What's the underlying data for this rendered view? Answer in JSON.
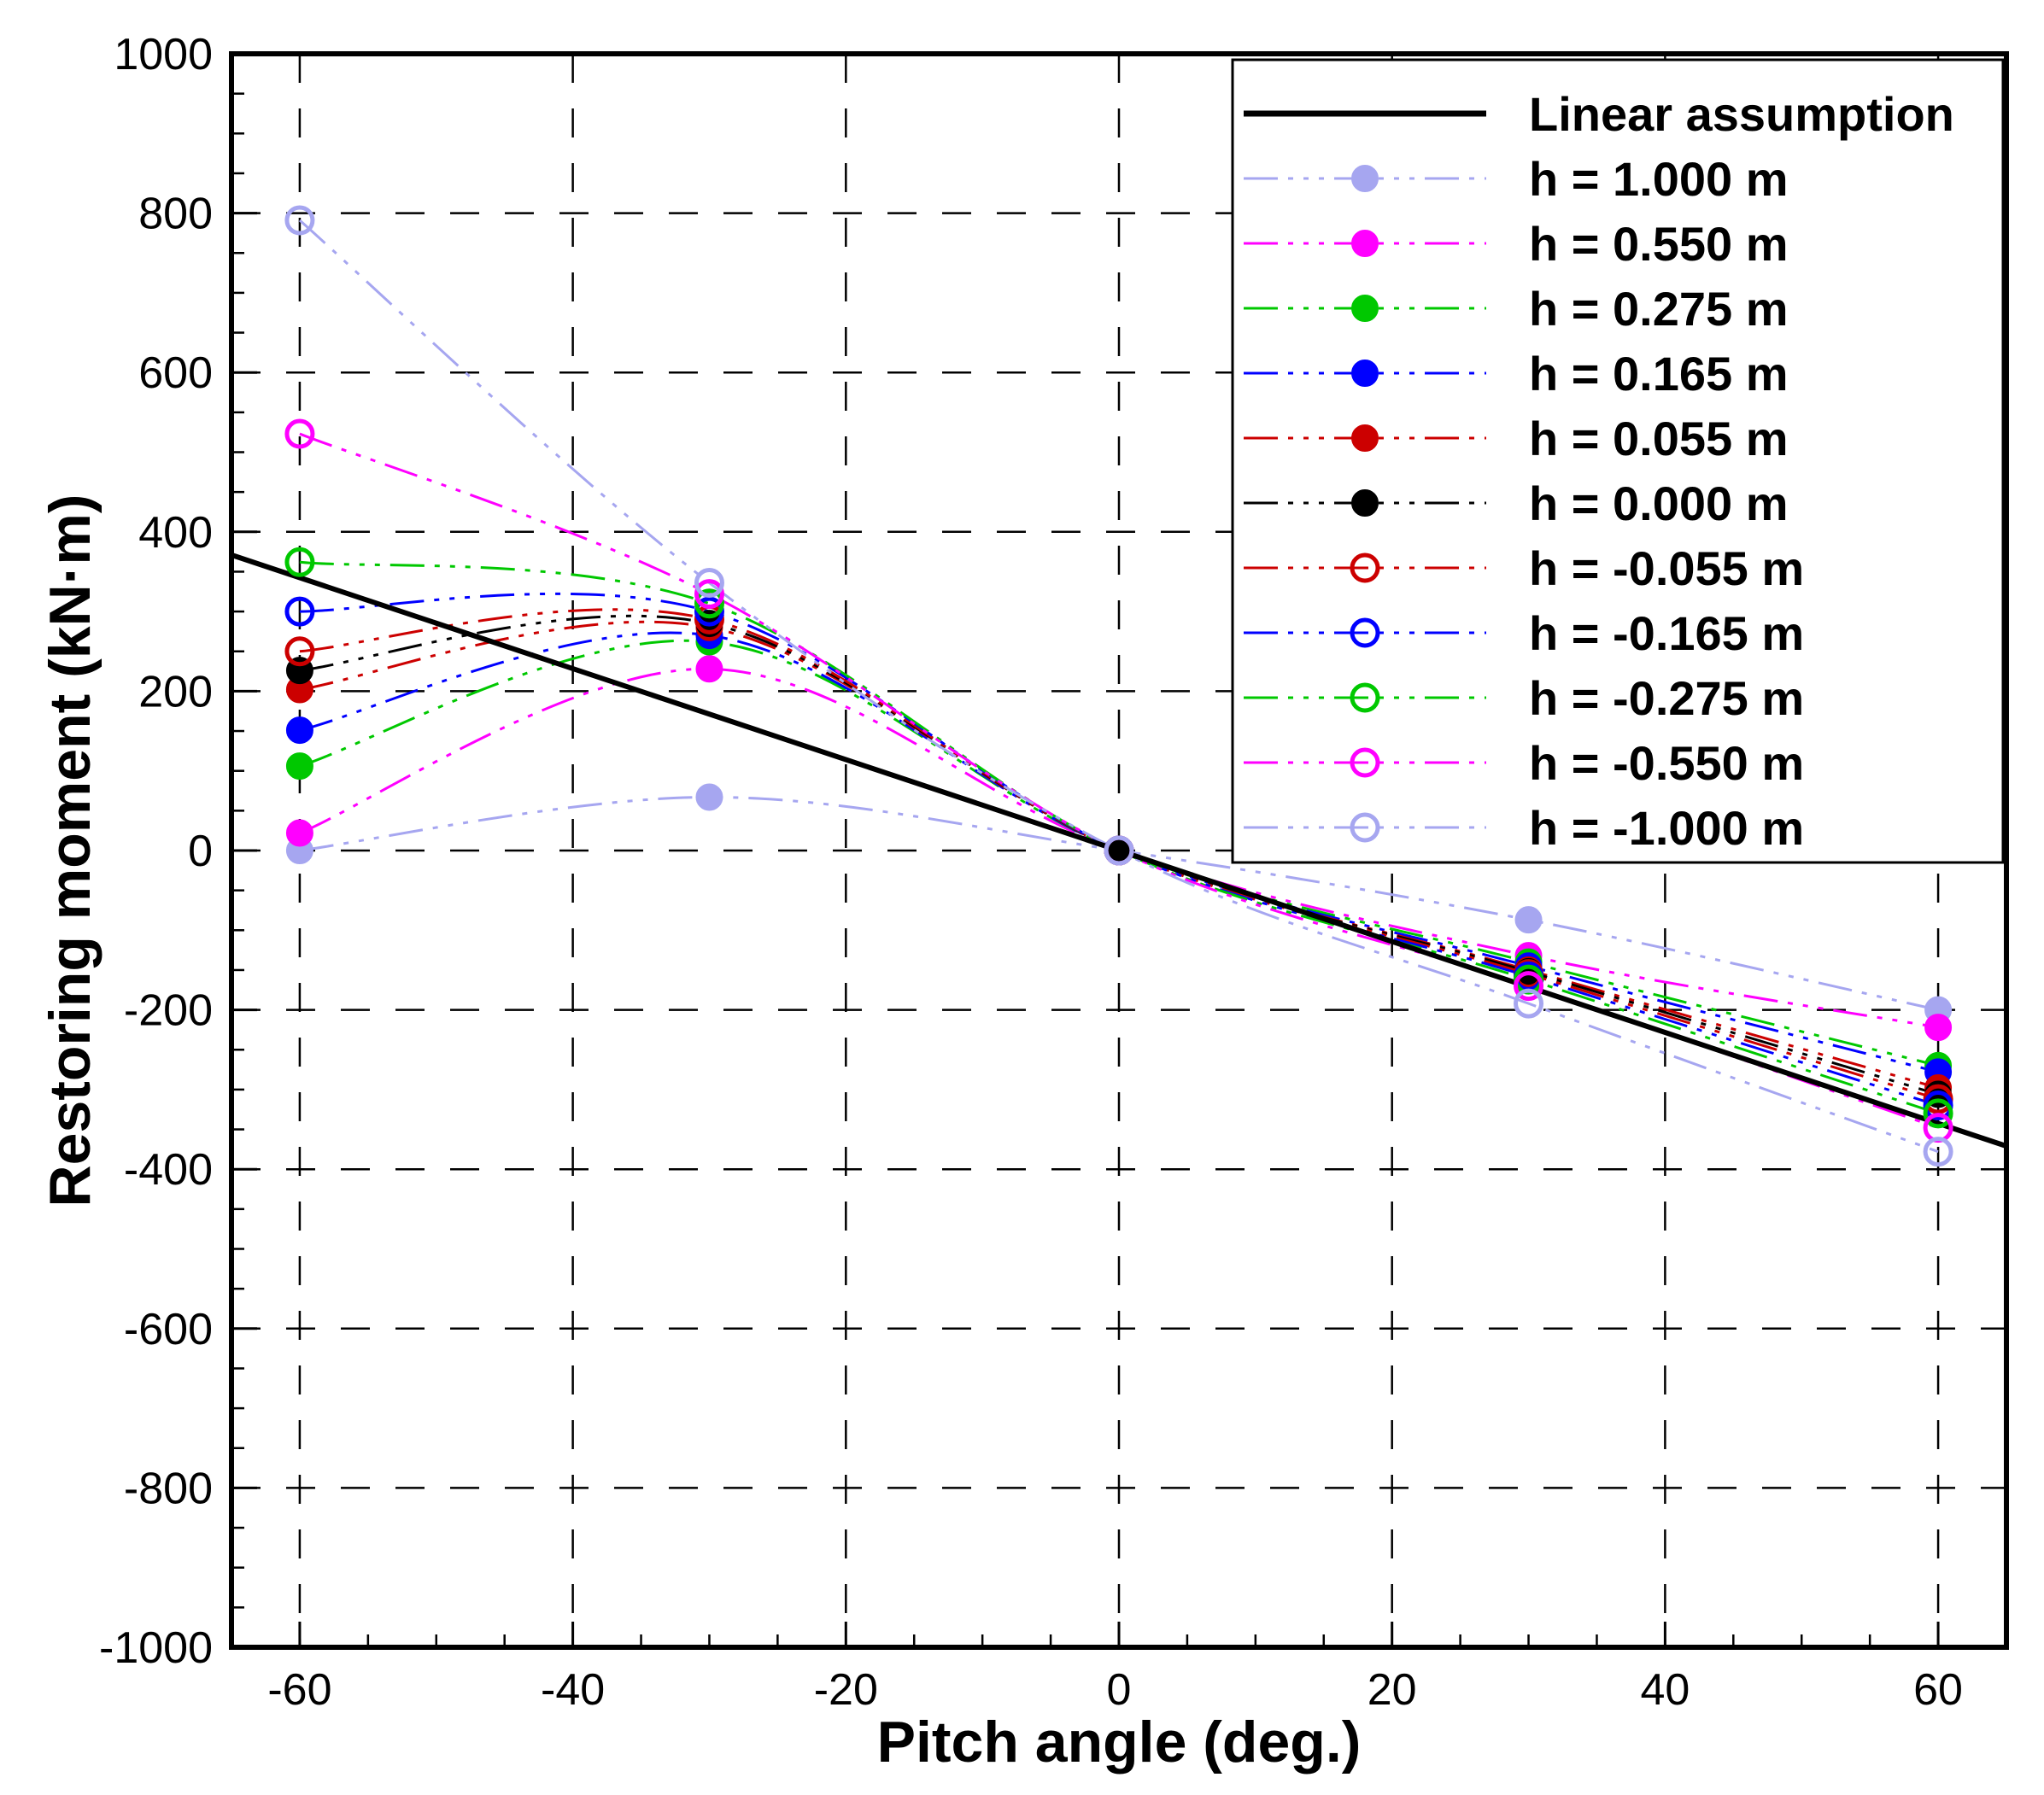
{
  "chart_data": {
    "type": "line",
    "title": "",
    "xlabel": "Pitch angle (deg.)",
    "ylabel": "Restoring moment (kN·m)",
    "xlim": [
      -65,
      65
    ],
    "ylim": [
      -1000,
      1000
    ],
    "xticks": [
      -60,
      -40,
      -20,
      0,
      20,
      40,
      60
    ],
    "yticks": [
      -1000,
      -800,
      -600,
      -400,
      -200,
      0,
      200,
      400,
      600,
      800,
      1000
    ],
    "xtick_labels": [
      "-60",
      "-40",
      "-20",
      "0",
      "20",
      "40",
      "60"
    ],
    "ytick_labels": [
      "-1000",
      "-800",
      "-600",
      "-400",
      "-200",
      "0",
      "200",
      "400",
      "600",
      "800",
      "1000"
    ],
    "grid": "dashed",
    "legend_position": "top-right",
    "x": [
      -60,
      -30,
      0,
      30,
      60
    ],
    "linear": {
      "name": "Linear assumption",
      "color": "#000000",
      "x": [
        -65,
        65
      ],
      "values": [
        371,
        -371
      ]
    },
    "series": [
      {
        "name": "h = 1.000 m",
        "color": "#a6a6f0",
        "marker": "filled",
        "values": [
          0,
          67,
          0,
          -87,
          -200
        ]
      },
      {
        "name": "h = 0.550 m",
        "color": "#ff00ff",
        "marker": "filled",
        "values": [
          22,
          228,
          0,
          -132,
          -222
        ]
      },
      {
        "name": "h = 0.275 m",
        "color": "#00c800",
        "marker": "filled",
        "values": [
          106,
          262,
          0,
          -140,
          -270
        ]
      },
      {
        "name": "h = 0.165 m",
        "color": "#0000ff",
        "marker": "filled",
        "values": [
          151,
          270,
          0,
          -145,
          -278
        ]
      },
      {
        "name": "h = 0.055 m",
        "color": "#cc0000",
        "marker": "filled",
        "values": [
          202,
          280,
          0,
          -150,
          -298
        ]
      },
      {
        "name": "h = 0.000 m",
        "color": "#000000",
        "marker": "filled",
        "values": [
          226,
          285,
          0,
          -152,
          -306
        ]
      },
      {
        "name": "h = -0.055 m",
        "color": "#cc0000",
        "marker": "open",
        "values": [
          250,
          290,
          0,
          -155,
          -312
        ]
      },
      {
        "name": "h = -0.165 m",
        "color": "#0000ff",
        "marker": "open",
        "values": [
          300,
          300,
          0,
          -158,
          -320
        ]
      },
      {
        "name": "h = -0.275 m",
        "color": "#00c800",
        "marker": "open",
        "values": [
          362,
          310,
          0,
          -162,
          -330
        ]
      },
      {
        "name": "h = -0.550 m",
        "color": "#ff00ff",
        "marker": "open",
        "values": [
          523,
          322,
          0,
          -170,
          -348
        ]
      },
      {
        "name": "h = -1.000 m",
        "color": "#a6a6f0",
        "marker": "open",
        "values": [
          791,
          336,
          0,
          -192,
          -378
        ]
      }
    ]
  }
}
